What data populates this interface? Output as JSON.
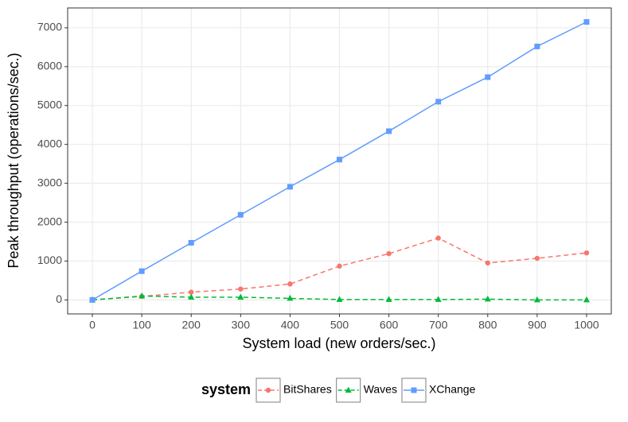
{
  "chart_data": {
    "type": "line",
    "x_label": "System load (new orders/sec.)",
    "y_label": "Peak throughput (operations/sec.)",
    "x": [
      0,
      100,
      200,
      300,
      400,
      500,
      600,
      700,
      800,
      900,
      1000
    ],
    "series": [
      {
        "name": "BitShares",
        "color": "#f8766d",
        "dash": true,
        "marker": "circle",
        "values": [
          0,
          90,
          200,
          280,
          410,
          870,
          1190,
          1590,
          950,
          1070,
          1210
        ]
      },
      {
        "name": "Waves",
        "color": "#00ba38",
        "dash": true,
        "marker": "triangle",
        "values": [
          0,
          100,
          70,
          70,
          40,
          10,
          10,
          10,
          20,
          0,
          0
        ]
      },
      {
        "name": "XChange",
        "color": "#619cff",
        "dash": false,
        "marker": "square",
        "values": [
          0,
          740,
          1470,
          2190,
          2910,
          3610,
          4340,
          5100,
          5730,
          6520,
          7150
        ]
      }
    ],
    "xlim": [
      -50,
      1050
    ],
    "ylim": [
      -360,
      7510
    ],
    "xticks": [
      0,
      100,
      200,
      300,
      400,
      500,
      600,
      700,
      800,
      900,
      1000
    ],
    "yticks": [
      0,
      1000,
      2000,
      3000,
      4000,
      5000,
      6000,
      7000
    ],
    "grid": true,
    "legend_title": "system",
    "legend_position": "bottom"
  }
}
